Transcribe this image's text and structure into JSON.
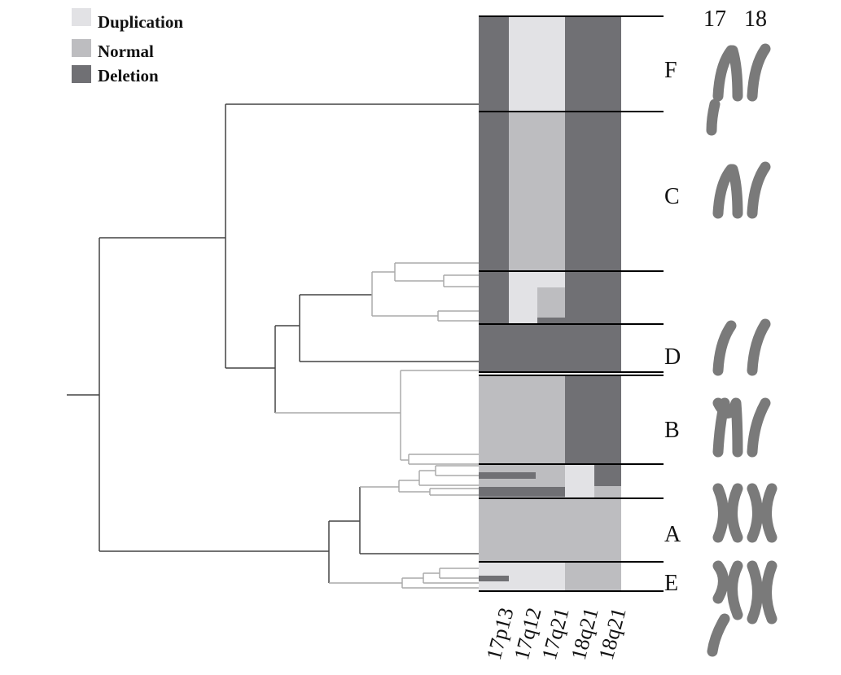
{
  "legend": [
    {
      "label": "Duplication"
    },
    {
      "label": "Normal"
    },
    {
      "label": "Deletion"
    }
  ],
  "chromosome_headers": [
    "17",
    "18"
  ],
  "groups": [
    "F",
    "C",
    "D",
    "B",
    "A",
    "E"
  ],
  "columns": [
    "17p13",
    "17q12",
    "17q21",
    "18q21",
    "18q21"
  ]
}
